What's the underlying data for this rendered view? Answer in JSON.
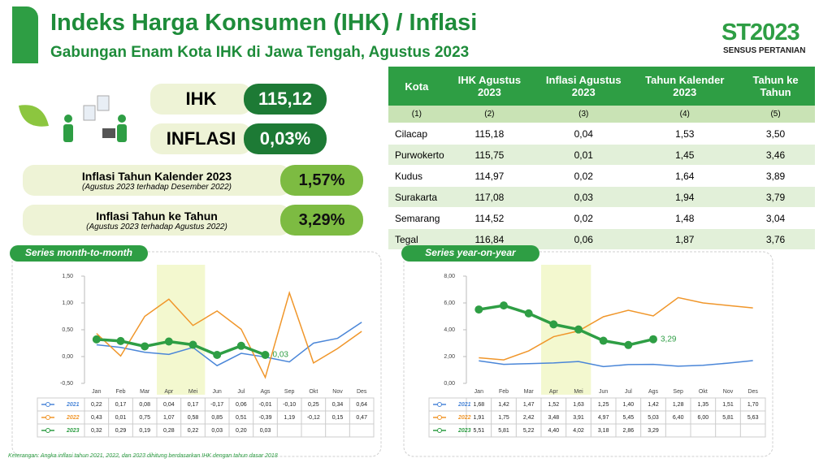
{
  "header": {
    "title": "Indeks Harga Konsumen (IHK) / Inflasi",
    "subtitle": "Gabungan Enam Kota IHK di Jawa Tengah, Agustus 2023",
    "logo": "ST2023",
    "logo_sub": "SENSUS PERTANIAN"
  },
  "stats": {
    "ihk_label": "IHK",
    "ihk_value": "115,12",
    "inflasi_label": "INFLASI",
    "inflasi_value": "0,03%",
    "kalender_label": "Inflasi Tahun Kalender 2023",
    "kalender_note": "(Agustus 2023 terhadap Desember 2022)",
    "kalender_value": "1,57%",
    "tahunan_label": "Inflasi Tahun ke Tahun",
    "tahunan_note": "(Agustus 2023 terhadap Agustus 2022)",
    "tahunan_value": "3,29%"
  },
  "table": {
    "headers": [
      "Kota",
      "IHK Agustus 2023",
      "Inflasi Agustus 2023",
      "Tahun Kalender 2023",
      "Tahun ke Tahun"
    ],
    "subheaders": [
      "(1)",
      "(2)",
      "(3)",
      "(4)",
      "(5)"
    ],
    "rows": [
      [
        "Cilacap",
        "115,18",
        "0,04",
        "1,53",
        "3,50"
      ],
      [
        "Purwokerto",
        "115,75",
        "0,01",
        "1,45",
        "3,46"
      ],
      [
        "Kudus",
        "114,97",
        "0,02",
        "1,64",
        "3,89"
      ],
      [
        "Surakarta",
        "117,08",
        "0,03",
        "1,94",
        "3,79"
      ],
      [
        "Semarang",
        "114,52",
        "0,02",
        "1,48",
        "3,04"
      ],
      [
        "Tegal",
        "116,84",
        "0,06",
        "1,87",
        "3,76"
      ]
    ]
  },
  "chart_data": [
    {
      "type": "line",
      "title": "Series month-to-month",
      "categories": [
        "Jan",
        "Feb",
        "Mar",
        "Apr",
        "Mei",
        "Jun",
        "Jul",
        "Ags",
        "Sep",
        "Okt",
        "Nov",
        "Des"
      ],
      "ylim": [
        -0.5,
        1.5
      ],
      "yticks": [
        {
          "value": -0.5,
          "label": "-0,50"
        },
        {
          "value": 0,
          "label": "0,00"
        },
        {
          "value": 0.5,
          "label": "0,50"
        },
        {
          "value": 1,
          "label": "1,00"
        },
        {
          "value": 1.5,
          "label": "1,50"
        }
      ],
      "grid": false,
      "series": [
        {
          "name": "2021",
          "color": "#4a86d8",
          "values": [
            0.22,
            0.17,
            0.08,
            0.04,
            0.17,
            -0.17,
            0.06,
            -0.01,
            -0.1,
            0.25,
            0.34,
            0.64
          ],
          "value_labels": [
            "0,22",
            "0,17",
            "0,08",
            "0,04",
            "0,17",
            "-0,17",
            "0,06",
            "-0,01",
            "-0,10",
            "0,25",
            "0,34",
            "0,64"
          ]
        },
        {
          "name": "2022",
          "color": "#f0962a",
          "values": [
            0.43,
            0.01,
            0.75,
            1.07,
            0.58,
            0.85,
            0.51,
            -0.39,
            1.19,
            -0.12,
            0.15,
            0.47
          ],
          "value_labels": [
            "0,43",
            "0,01",
            "0,75",
            "1,07",
            "0,58",
            "0,85",
            "0,51",
            "-0,39",
            "1,19",
            "-0,12",
            "0,15",
            "0,47"
          ]
        },
        {
          "name": "2023",
          "color": "#2e9e44",
          "values": [
            0.32,
            0.29,
            0.19,
            0.28,
            0.22,
            0.03,
            0.2,
            0.03,
            null,
            null,
            null,
            null
          ],
          "value_labels": [
            "0,32",
            "0,29",
            "0,19",
            "0,28",
            "0,22",
            "0,03",
            "0,20",
            "0,03",
            null,
            null,
            null,
            null
          ]
        }
      ]
    },
    {
      "type": "line",
      "title": "Series year-on-year",
      "categories": [
        "Jan",
        "Feb",
        "Mar",
        "Apr",
        "Mei",
        "Jun",
        "Jul",
        "Ags",
        "Sep",
        "Okt",
        "Nov",
        "Des"
      ],
      "ylim": [
        0,
        8
      ],
      "yticks": [
        {
          "value": 0,
          "label": "0,00"
        },
        {
          "value": 2,
          "label": "2,00"
        },
        {
          "value": 4,
          "label": "4,00"
        },
        {
          "value": 6,
          "label": "6,00"
        },
        {
          "value": 8,
          "label": "8,00"
        }
      ],
      "grid": false,
      "series": [
        {
          "name": "2021",
          "color": "#4a86d8",
          "values": [
            1.68,
            1.42,
            1.47,
            1.52,
            1.63,
            1.25,
            1.4,
            1.42,
            1.28,
            1.35,
            1.51,
            1.7
          ],
          "value_labels": [
            "1,68",
            "1,42",
            "1,47",
            "1,52",
            "1,63",
            "1,25",
            "1,40",
            "1,42",
            "1,28",
            "1,35",
            "1,51",
            "1,70"
          ]
        },
        {
          "name": "2022",
          "color": "#f0962a",
          "values": [
            1.91,
            1.75,
            2.42,
            3.48,
            3.91,
            4.97,
            5.45,
            5.03,
            6.4,
            6.0,
            5.81,
            5.63
          ],
          "value_labels": [
            "1,91",
            "1,75",
            "2,42",
            "3,48",
            "3,91",
            "4,97",
            "5,45",
            "5,03",
            "6,40",
            "6,00",
            "5,81",
            "5,63"
          ]
        },
        {
          "name": "2023",
          "color": "#2e9e44",
          "values": [
            5.51,
            5.81,
            5.22,
            4.4,
            4.02,
            3.18,
            2.86,
            3.29,
            null,
            null,
            null,
            null
          ],
          "value_labels": [
            "5,51",
            "5,81",
            "5,22",
            "4,40",
            "4,02",
            "3,18",
            "2,86",
            "3,29",
            null,
            null,
            null,
            null
          ]
        }
      ]
    }
  ],
  "footnote": "Keterangan: Angka inflasi tahun 2021, 2022, dan 2023 dihitung berdasarkan IHK dengan tahun dasar 2018"
}
